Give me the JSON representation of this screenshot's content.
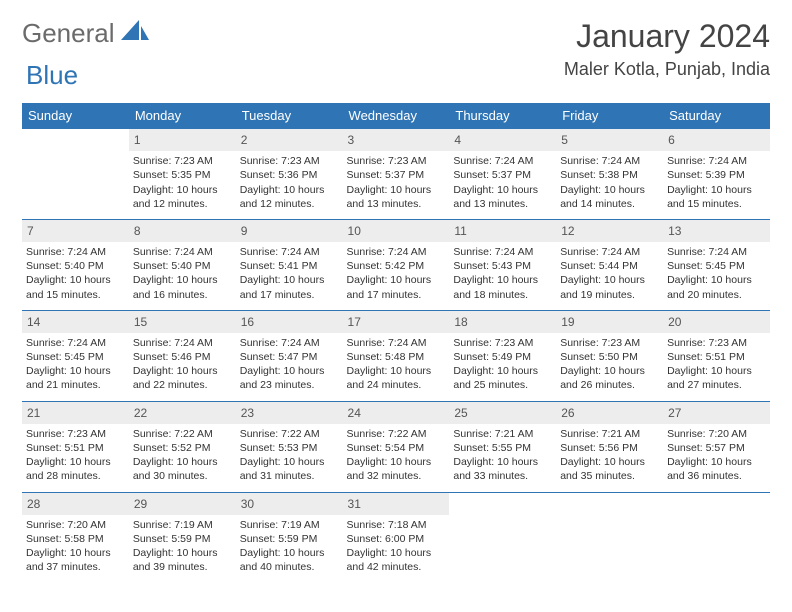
{
  "logo": {
    "part1": "General",
    "part2": "Blue"
  },
  "title": "January 2024",
  "location": "Maler Kotla, Punjab, India",
  "colors": {
    "brand_blue": "#2f74b5",
    "header_text": "#ffffff",
    "daynum_bg": "#ededed",
    "body_text": "#333333",
    "logo_gray": "#6b6b6b"
  },
  "dayHeaders": [
    "Sunday",
    "Monday",
    "Tuesday",
    "Wednesday",
    "Thursday",
    "Friday",
    "Saturday"
  ],
  "weeks": [
    [
      {
        "num": "",
        "lines": []
      },
      {
        "num": "1",
        "lines": [
          "Sunrise: 7:23 AM",
          "Sunset: 5:35 PM",
          "Daylight: 10 hours and 12 minutes."
        ]
      },
      {
        "num": "2",
        "lines": [
          "Sunrise: 7:23 AM",
          "Sunset: 5:36 PM",
          "Daylight: 10 hours and 12 minutes."
        ]
      },
      {
        "num": "3",
        "lines": [
          "Sunrise: 7:23 AM",
          "Sunset: 5:37 PM",
          "Daylight: 10 hours and 13 minutes."
        ]
      },
      {
        "num": "4",
        "lines": [
          "Sunrise: 7:24 AM",
          "Sunset: 5:37 PM",
          "Daylight: 10 hours and 13 minutes."
        ]
      },
      {
        "num": "5",
        "lines": [
          "Sunrise: 7:24 AM",
          "Sunset: 5:38 PM",
          "Daylight: 10 hours and 14 minutes."
        ]
      },
      {
        "num": "6",
        "lines": [
          "Sunrise: 7:24 AM",
          "Sunset: 5:39 PM",
          "Daylight: 10 hours and 15 minutes."
        ]
      }
    ],
    [
      {
        "num": "7",
        "lines": [
          "Sunrise: 7:24 AM",
          "Sunset: 5:40 PM",
          "Daylight: 10 hours and 15 minutes."
        ]
      },
      {
        "num": "8",
        "lines": [
          "Sunrise: 7:24 AM",
          "Sunset: 5:40 PM",
          "Daylight: 10 hours and 16 minutes."
        ]
      },
      {
        "num": "9",
        "lines": [
          "Sunrise: 7:24 AM",
          "Sunset: 5:41 PM",
          "Daylight: 10 hours and 17 minutes."
        ]
      },
      {
        "num": "10",
        "lines": [
          "Sunrise: 7:24 AM",
          "Sunset: 5:42 PM",
          "Daylight: 10 hours and 17 minutes."
        ]
      },
      {
        "num": "11",
        "lines": [
          "Sunrise: 7:24 AM",
          "Sunset: 5:43 PM",
          "Daylight: 10 hours and 18 minutes."
        ]
      },
      {
        "num": "12",
        "lines": [
          "Sunrise: 7:24 AM",
          "Sunset: 5:44 PM",
          "Daylight: 10 hours and 19 minutes."
        ]
      },
      {
        "num": "13",
        "lines": [
          "Sunrise: 7:24 AM",
          "Sunset: 5:45 PM",
          "Daylight: 10 hours and 20 minutes."
        ]
      }
    ],
    [
      {
        "num": "14",
        "lines": [
          "Sunrise: 7:24 AM",
          "Sunset: 5:45 PM",
          "Daylight: 10 hours and 21 minutes."
        ]
      },
      {
        "num": "15",
        "lines": [
          "Sunrise: 7:24 AM",
          "Sunset: 5:46 PM",
          "Daylight: 10 hours and 22 minutes."
        ]
      },
      {
        "num": "16",
        "lines": [
          "Sunrise: 7:24 AM",
          "Sunset: 5:47 PM",
          "Daylight: 10 hours and 23 minutes."
        ]
      },
      {
        "num": "17",
        "lines": [
          "Sunrise: 7:24 AM",
          "Sunset: 5:48 PM",
          "Daylight: 10 hours and 24 minutes."
        ]
      },
      {
        "num": "18",
        "lines": [
          "Sunrise: 7:23 AM",
          "Sunset: 5:49 PM",
          "Daylight: 10 hours and 25 minutes."
        ]
      },
      {
        "num": "19",
        "lines": [
          "Sunrise: 7:23 AM",
          "Sunset: 5:50 PM",
          "Daylight: 10 hours and 26 minutes."
        ]
      },
      {
        "num": "20",
        "lines": [
          "Sunrise: 7:23 AM",
          "Sunset: 5:51 PM",
          "Daylight: 10 hours and 27 minutes."
        ]
      }
    ],
    [
      {
        "num": "21",
        "lines": [
          "Sunrise: 7:23 AM",
          "Sunset: 5:51 PM",
          "Daylight: 10 hours and 28 minutes."
        ]
      },
      {
        "num": "22",
        "lines": [
          "Sunrise: 7:22 AM",
          "Sunset: 5:52 PM",
          "Daylight: 10 hours and 30 minutes."
        ]
      },
      {
        "num": "23",
        "lines": [
          "Sunrise: 7:22 AM",
          "Sunset: 5:53 PM",
          "Daylight: 10 hours and 31 minutes."
        ]
      },
      {
        "num": "24",
        "lines": [
          "Sunrise: 7:22 AM",
          "Sunset: 5:54 PM",
          "Daylight: 10 hours and 32 minutes."
        ]
      },
      {
        "num": "25",
        "lines": [
          "Sunrise: 7:21 AM",
          "Sunset: 5:55 PM",
          "Daylight: 10 hours and 33 minutes."
        ]
      },
      {
        "num": "26",
        "lines": [
          "Sunrise: 7:21 AM",
          "Sunset: 5:56 PM",
          "Daylight: 10 hours and 35 minutes."
        ]
      },
      {
        "num": "27",
        "lines": [
          "Sunrise: 7:20 AM",
          "Sunset: 5:57 PM",
          "Daylight: 10 hours and 36 minutes."
        ]
      }
    ],
    [
      {
        "num": "28",
        "lines": [
          "Sunrise: 7:20 AM",
          "Sunset: 5:58 PM",
          "Daylight: 10 hours and 37 minutes."
        ]
      },
      {
        "num": "29",
        "lines": [
          "Sunrise: 7:19 AM",
          "Sunset: 5:59 PM",
          "Daylight: 10 hours and 39 minutes."
        ]
      },
      {
        "num": "30",
        "lines": [
          "Sunrise: 7:19 AM",
          "Sunset: 5:59 PM",
          "Daylight: 10 hours and 40 minutes."
        ]
      },
      {
        "num": "31",
        "lines": [
          "Sunrise: 7:18 AM",
          "Sunset: 6:00 PM",
          "Daylight: 10 hours and 42 minutes."
        ]
      },
      {
        "num": "",
        "lines": []
      },
      {
        "num": "",
        "lines": []
      },
      {
        "num": "",
        "lines": []
      }
    ]
  ]
}
